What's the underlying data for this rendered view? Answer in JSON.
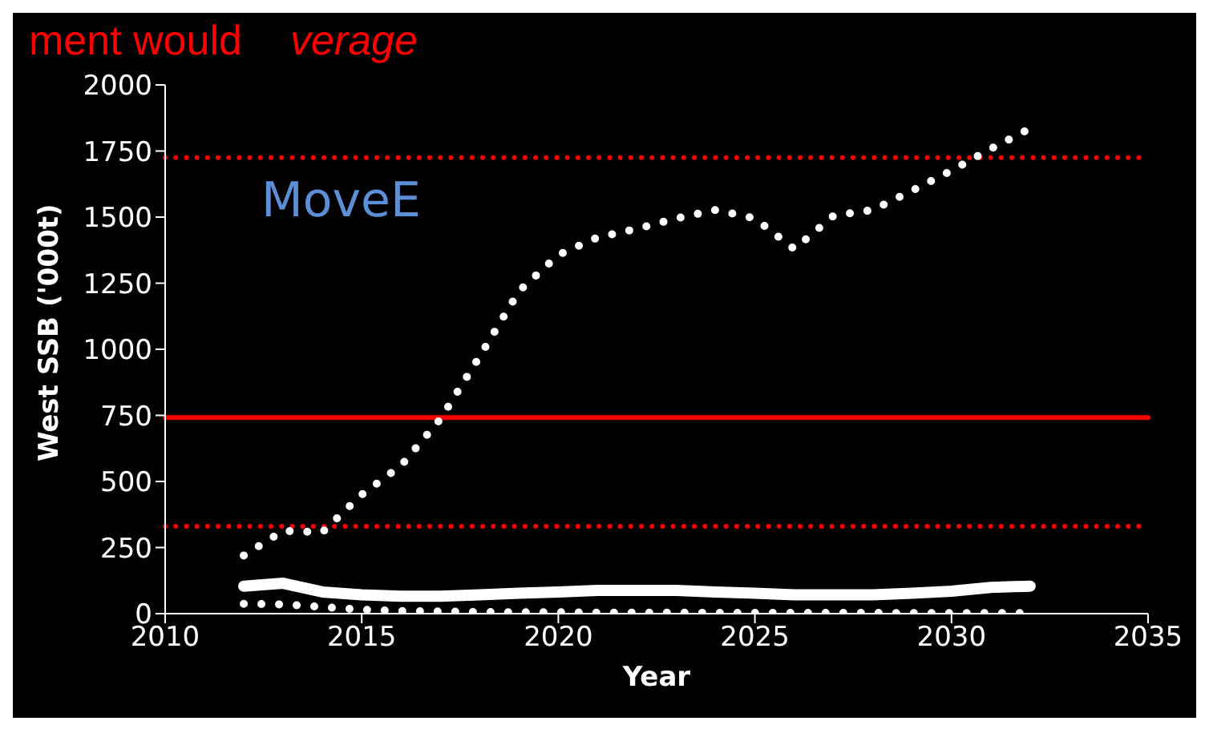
{
  "chart_data": {
    "type": "line",
    "xlabel": "Year",
    "ylabel": "West SSB ('000t)",
    "annotations": [
      "ment would",
      "verage",
      "MoveE"
    ],
    "x": [
      2012,
      2013,
      2014,
      2015,
      2016,
      2017,
      2018,
      2019,
      2020,
      2021,
      2022,
      2023,
      2024,
      2025,
      2026,
      2027,
      2028,
      2029,
      2030,
      2031,
      2032
    ],
    "series": [
      {
        "color": "#ffffff",
        "line_style": "dotted",
        "values": [
          220,
          313,
          308,
          450,
          560,
          736,
          973,
          1220,
          1357,
          1423,
          1456,
          1495,
          1527,
          1495,
          1379,
          1505,
          1527,
          1600,
          1676,
          1758,
          1835
        ]
      },
      {
        "color": "#ffffff",
        "line_style": "solid",
        "values": [
          104,
          115,
          82,
          71,
          66,
          66,
          71,
          77,
          82,
          88,
          88,
          88,
          82,
          77,
          71,
          71,
          71,
          77,
          85,
          99,
          104
        ]
      },
      {
        "color": "#ffffff",
        "line_style": "dotted",
        "values": [
          37,
          35,
          25,
          15,
          10,
          8,
          6,
          5,
          5,
          4,
          4,
          4,
          3,
          3,
          3,
          3,
          3,
          2,
          2,
          2,
          2
        ]
      }
    ],
    "ref_lines": [
      {
        "axis": "y",
        "value": 742,
        "color": "#ff0000",
        "line_style": "solid"
      },
      {
        "axis": "y",
        "value": 1725,
        "color": "#ff0000",
        "line_style": "dotted"
      },
      {
        "axis": "y",
        "value": 330,
        "color": "#ff0000",
        "line_style": "dotted"
      }
    ],
    "xlim": [
      2010,
      2035
    ],
    "xticks": [
      2010,
      2015,
      2020,
      2025,
      2030,
      2035
    ],
    "ylim": [
      0,
      2000
    ],
    "yticks": [
      0,
      250,
      500,
      750,
      1000,
      1250,
      1500,
      1750,
      2000
    ],
    "grid": false,
    "legend": false,
    "marker": "none"
  }
}
